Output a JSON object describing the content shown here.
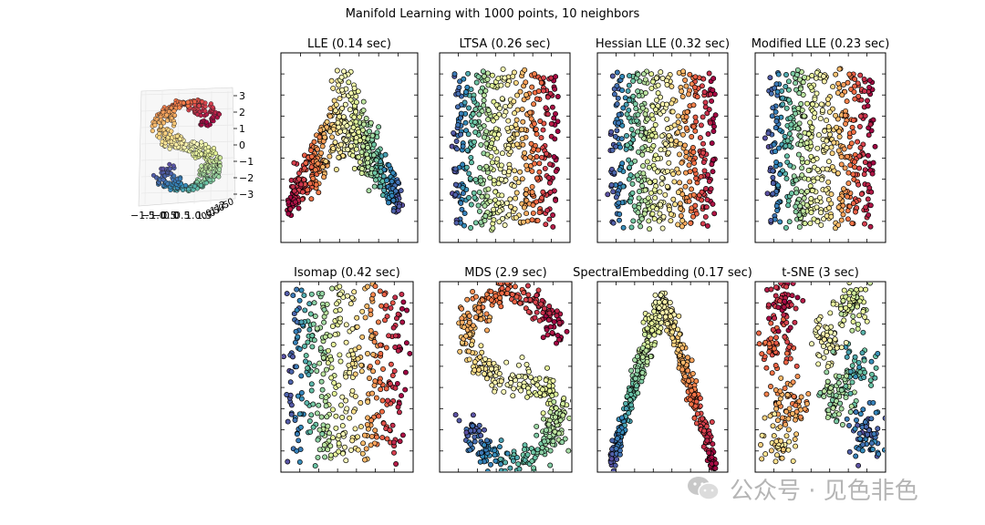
{
  "suptitle": "Manifold Learning with 1000 points, 10 neighbors",
  "watermark": "公众号 · 见色非色",
  "colors": {
    "cmap": "Spectral",
    "marker_edge": "#000000"
  },
  "chart_data": [
    {
      "type": "scatter3d",
      "title": "",
      "z_ticks": [
        "3",
        "2",
        "1",
        "0",
        "−1",
        "−2",
        "−3"
      ],
      "x_ticks": [
        "−1.5",
        "−1.0",
        "−0.5",
        "0.0",
        "0.5",
        "1.0",
        "1.5"
      ],
      "y_ticks": [
        "0.0",
        "0.5",
        "1.0",
        "1.5",
        "2.0"
      ],
      "shape": "S-curve"
    },
    {
      "type": "scatter",
      "title": "LLE (0.14 sec)",
      "shape": "inverted-V"
    },
    {
      "type": "scatter",
      "title": "LTSA (0.26 sec)",
      "shape": "uniform-rect"
    },
    {
      "type": "scatter",
      "title": "Hessian LLE (0.32 sec)",
      "shape": "uniform-rect"
    },
    {
      "type": "scatter",
      "title": "Modified LLE (0.23 sec)",
      "shape": "uniform-rect"
    },
    {
      "type": "scatter",
      "title": "Isomap (0.42 sec)",
      "shape": "sparse-rect"
    },
    {
      "type": "scatter",
      "title": "MDS (2.9 sec)",
      "shape": "S-curve-2d"
    },
    {
      "type": "scatter",
      "title": "SpectralEmbedding (0.17 sec)",
      "shape": "inverted-V-narrow"
    },
    {
      "type": "scatter",
      "title": "t-SNE (3 sec)",
      "shape": "clusters"
    }
  ]
}
